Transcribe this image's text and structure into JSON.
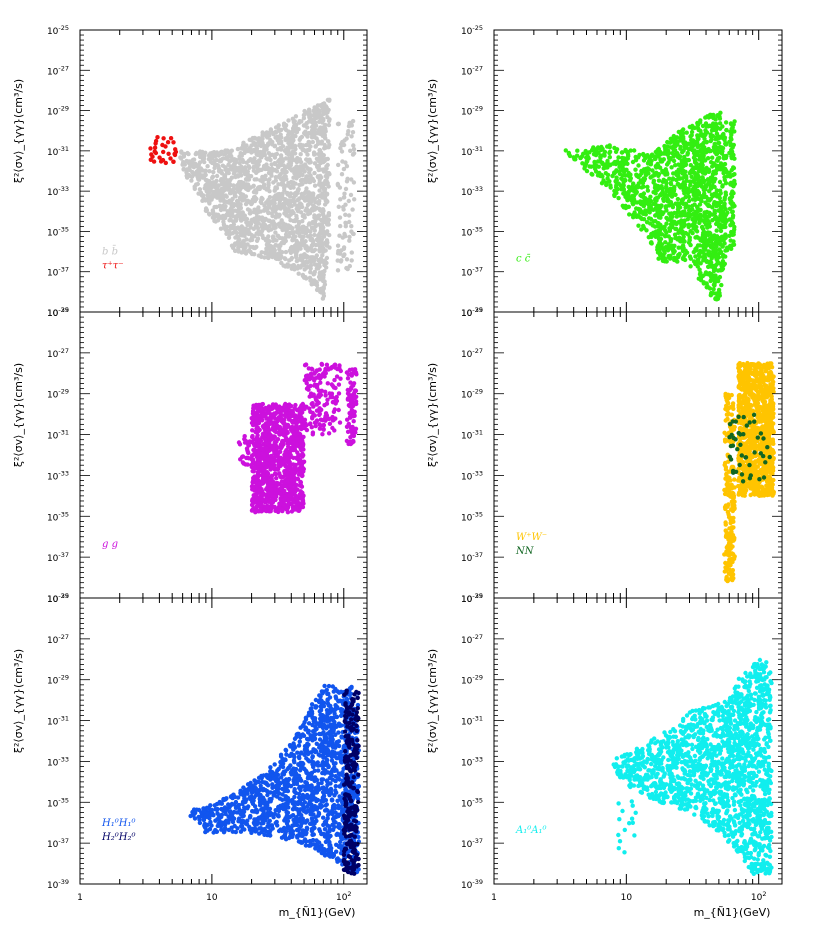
{
  "figure": {
    "x_axis_label": "m_{Ñ1}(GeV)",
    "y_axis_label": "ξ²⟨σv⟩_{γγ}(cm³/s)",
    "x_ticks": [
      {
        "value": 1,
        "label": "1"
      },
      {
        "value": 10,
        "label": "10"
      },
      {
        "value": 100,
        "label": "10",
        "sup": "2"
      }
    ],
    "y_ticks": [
      {
        "value": -25,
        "label": "10",
        "sup": "-25"
      },
      {
        "value": -27,
        "label": "10",
        "sup": "-27"
      },
      {
        "value": -29,
        "label": "10",
        "sup": "-29"
      },
      {
        "value": -31,
        "label": "10",
        "sup": "-31"
      },
      {
        "value": -33,
        "label": "10",
        "sup": "-33"
      },
      {
        "value": -35,
        "label": "10",
        "sup": "-35"
      },
      {
        "value": -37,
        "label": "10",
        "sup": "-37"
      },
      {
        "value": -39,
        "label": "10",
        "sup": "-39"
      }
    ],
    "colors": {
      "bb": "#c8c8c8",
      "tautau": "#ee1111",
      "cc": "#33ee11",
      "gg": "#cc11dd",
      "WW": "#ffc400",
      "NN": "#116622",
      "H1H1": "#1155ee",
      "H2H2": "#000066",
      "A1A1": "#11eeee"
    }
  },
  "chart_data": [
    {
      "type": "scatter",
      "panel": "top-left",
      "x_scale": "log",
      "xlim": [
        1,
        150
      ],
      "y_scale": "log",
      "ylim": [
        "1e-39",
        "1e-25"
      ],
      "legend_position": "bottom-left",
      "series": [
        {
          "name": "b b̄",
          "color": "#c8c8c8",
          "regions": [
            {
              "type": "poly",
              "n": 1900,
              "pts": [
                [
                  5.5,
                  -31
                ],
                [
                  12,
                  -31
                ],
                [
                  25,
                  -30
                ],
                [
                  50,
                  -29
                ],
                [
                  72,
                  -28.5
                ],
                [
                  78,
                  -28.3
                ],
                [
                  78,
                  -36
                ],
                [
                  70,
                  -38.5
                ],
                [
                  55,
                  -37.5
                ],
                [
                  30,
                  -36.5
                ],
                [
                  15,
                  -36
                ],
                [
                  9,
                  -34
                ],
                [
                  6,
                  -32
                ]
              ]
            },
            {
              "type": "box",
              "n": 90,
              "x": [
                90,
                120
              ],
              "y": [
                -37,
                -29.5
              ]
            }
          ]
        },
        {
          "name": "τ⁺τ⁻",
          "color": "#ee1111",
          "regions": [
            {
              "type": "box",
              "n": 30,
              "x": [
                3.4,
                5.4
              ],
              "y": [
                -31.6,
                -30.3
              ]
            }
          ]
        }
      ]
    },
    {
      "type": "scatter",
      "panel": "top-right",
      "x_scale": "log",
      "xlim": [
        1,
        150
      ],
      "y_scale": "log",
      "ylim": [
        "1e-39",
        "1e-25"
      ],
      "legend_position": "bottom-left",
      "series": [
        {
          "name": "c c̄",
          "color": "#33ee11",
          "regions": [
            {
              "type": "poly",
              "n": 1500,
              "pts": [
                [
                  3.2,
                  -31
                ],
                [
                  7,
                  -30.7
                ],
                [
                  15,
                  -31.2
                ],
                [
                  25,
                  -30
                ],
                [
                  45,
                  -29
                ],
                [
                  58,
                  -29
                ],
                [
                  58,
                  -36
                ],
                [
                  50,
                  -38.5
                ],
                [
                  40,
                  -38
                ],
                [
                  28,
                  -36.5
                ],
                [
                  18,
                  -36.5
                ],
                [
                  10,
                  -34
                ],
                [
                  5,
                  -32
                ]
              ]
            },
            {
              "type": "box",
              "n": 80,
              "x": [
                60,
                66
              ],
              "y": [
                -36,
                -29.5
              ]
            }
          ]
        }
      ]
    },
    {
      "type": "scatter",
      "panel": "middle-left",
      "x_scale": "log",
      "xlim": [
        1,
        150
      ],
      "y_scale": "log",
      "ylim": [
        "1e-39",
        "1e-25"
      ],
      "legend_position": "bottom-left",
      "series": [
        {
          "name": "g g",
          "color": "#cc11dd",
          "regions": [
            {
              "type": "box",
              "n": 1100,
              "x": [
                20,
                50
              ],
              "y": [
                -34.8,
                -29.5
              ]
            },
            {
              "type": "box",
              "n": 160,
              "x": [
                50,
                95
              ],
              "y": [
                -31,
                -27.5
              ]
            },
            {
              "type": "box",
              "n": 90,
              "x": [
                105,
                125
              ],
              "y": [
                -31.5,
                -27.8
              ]
            },
            {
              "type": "box",
              "n": 25,
              "x": [
                16,
                20
              ],
              "y": [
                -32.5,
                -31
              ]
            }
          ]
        }
      ]
    },
    {
      "type": "scatter",
      "panel": "middle-right",
      "x_scale": "log",
      "xlim": [
        1,
        150
      ],
      "y_scale": "log",
      "ylim": [
        "1e-39",
        "1e-25"
      ],
      "legend_position": "bottom-left",
      "series": [
        {
          "name": "W⁺W⁻",
          "color": "#ffc400",
          "regions": [
            {
              "type": "box",
              "n": 1000,
              "x": [
                70,
                130
              ],
              "y": [
                -34,
                -27.5
              ]
            },
            {
              "type": "box",
              "n": 220,
              "x": [
                55,
                66
              ],
              "y": [
                -38.2,
                -29
              ]
            }
          ]
        },
        {
          "name": "NN",
          "color": "#116622",
          "regions": [
            {
              "type": "box",
              "n": 45,
              "x": [
                60,
                125
              ],
              "y": [
                -33.5,
                -30
              ]
            }
          ]
        }
      ]
    },
    {
      "type": "scatter",
      "panel": "bottom-left",
      "x_scale": "log",
      "xlim": [
        1,
        150
      ],
      "y_scale": "log",
      "ylim": [
        "1e-39",
        "1e-25"
      ],
      "legend_position": "bottom-left",
      "series": [
        {
          "name": "H₁⁰H₁⁰",
          "color": "#1155ee",
          "regions": [
            {
              "type": "poly",
              "n": 1600,
              "pts": [
                [
                  6,
                  -35.5
                ],
                [
                  15,
                  -34.5
                ],
                [
                  30,
                  -33
                ],
                [
                  55,
                  -30.5
                ],
                [
                  65,
                  -29.3
                ],
                [
                  120,
                  -29.3
                ],
                [
                  130,
                  -30
                ],
                [
                  130,
                  -38.5
                ],
                [
                  90,
                  -38
                ],
                [
                  45,
                  -37
                ],
                [
                  20,
                  -36.5
                ],
                [
                  9,
                  -36.5
                ]
              ]
            }
          ]
        },
        {
          "name": "H₂⁰H₂⁰",
          "color": "#000066",
          "regions": [
            {
              "type": "box",
              "n": 250,
              "x": [
                100,
                130
              ],
              "y": [
                -38.5,
                -29.5
              ]
            }
          ]
        }
      ]
    },
    {
      "type": "scatter",
      "panel": "bottom-right",
      "x_scale": "log",
      "xlim": [
        1,
        150
      ],
      "y_scale": "log",
      "ylim": [
        "1e-39",
        "1e-25"
      ],
      "legend_position": "bottom-left",
      "series": [
        {
          "name": "A₁⁰A₁⁰",
          "color": "#11eeee",
          "regions": [
            {
              "type": "poly",
              "n": 1700,
              "pts": [
                [
                  7,
                  -33
                ],
                [
                  15,
                  -32
                ],
                [
                  30,
                  -30.5
                ],
                [
                  60,
                  -30
                ],
                [
                  68,
                  -29
                ],
                [
                  100,
                  -28
                ],
                [
                  125,
                  -28
                ],
                [
                  125,
                  -38.5
                ],
                [
                  90,
                  -38.5
                ],
                [
                  50,
                  -36.5
                ],
                [
                  30,
                  -35.5
                ],
                [
                  15,
                  -35
                ],
                [
                  9,
                  -34
                ]
              ]
            },
            {
              "type": "box",
              "n": 15,
              "x": [
                8,
                12
              ],
              "y": [
                -38,
                -34.5
              ]
            }
          ]
        }
      ]
    }
  ]
}
